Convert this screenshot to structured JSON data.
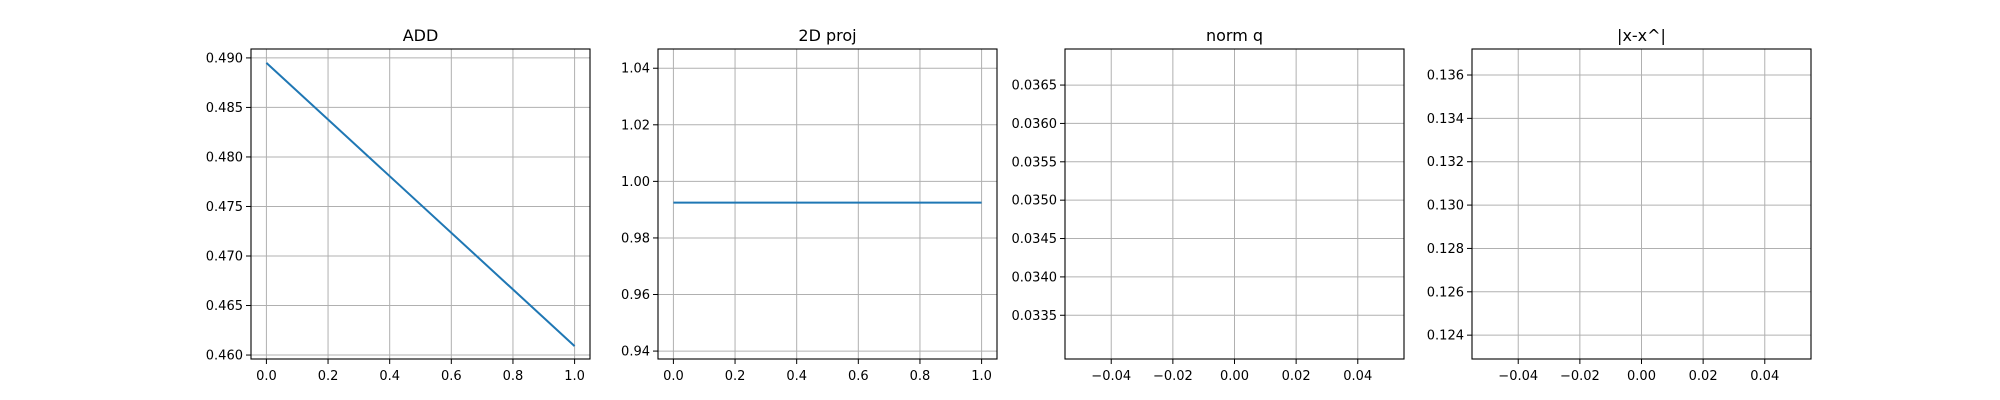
{
  "chart_data": [
    {
      "type": "line",
      "title": "ADD",
      "xlabel": "",
      "ylabel": "",
      "xlim": [
        -0.05,
        1.05
      ],
      "ylim": [
        0.4596,
        0.4909
      ],
      "x_ticks": [
        0.0,
        0.2,
        0.4,
        0.6,
        0.8,
        1.0
      ],
      "x_tick_labels": [
        "0.0",
        "0.2",
        "0.4",
        "0.6",
        "0.8",
        "1.0"
      ],
      "y_ticks": [
        0.46,
        0.465,
        0.47,
        0.475,
        0.48,
        0.485,
        0.49
      ],
      "y_tick_labels": [
        "0.460",
        "0.465",
        "0.470",
        "0.475",
        "0.480",
        "0.485",
        "0.490"
      ],
      "grid": true,
      "series": [
        {
          "x": [
            0.0,
            1.0
          ],
          "y": [
            0.4895,
            0.4609
          ],
          "color": "#1f77b4"
        }
      ]
    },
    {
      "type": "line",
      "title": "2D proj",
      "xlabel": "",
      "ylabel": "",
      "xlim": [
        -0.05,
        1.05
      ],
      "ylim": [
        0.9372,
        1.0468
      ],
      "x_ticks": [
        0.0,
        0.2,
        0.4,
        0.6,
        0.8,
        1.0
      ],
      "x_tick_labels": [
        "0.0",
        "0.2",
        "0.4",
        "0.6",
        "0.8",
        "1.0"
      ],
      "y_ticks": [
        0.94,
        0.96,
        0.98,
        1.0,
        1.02,
        1.04
      ],
      "y_tick_labels": [
        "0.94",
        "0.96",
        "0.98",
        "1.00",
        "1.02",
        "1.04"
      ],
      "grid": true,
      "series": [
        {
          "x": [
            0.0,
            1.0
          ],
          "y": [
            0.9925,
            0.9925
          ],
          "color": "#1f77b4"
        }
      ]
    },
    {
      "type": "line",
      "title": "norm q",
      "xlabel": "",
      "ylabel": "",
      "xlim": [
        -0.055,
        0.055
      ],
      "ylim": [
        0.03293,
        0.03697
      ],
      "x_ticks": [
        -0.04,
        -0.02,
        0.0,
        0.02,
        0.04
      ],
      "x_tick_labels": [
        "−0.04",
        "−0.02",
        "0.00",
        "0.02",
        "0.04"
      ],
      "y_ticks": [
        0.0335,
        0.034,
        0.0345,
        0.035,
        0.0355,
        0.036,
        0.0365
      ],
      "y_tick_labels": [
        "0.0335",
        "0.0340",
        "0.0345",
        "0.0350",
        "0.0355",
        "0.0360",
        "0.0365"
      ],
      "grid": true,
      "series": []
    },
    {
      "type": "line",
      "title": "|x-x^|",
      "xlabel": "",
      "ylabel": "",
      "xlim": [
        -0.055,
        0.055
      ],
      "ylim": [
        0.1229,
        0.1372
      ],
      "x_ticks": [
        -0.04,
        -0.02,
        0.0,
        0.02,
        0.04
      ],
      "x_tick_labels": [
        "−0.04",
        "−0.02",
        "0.00",
        "0.02",
        "0.04"
      ],
      "y_ticks": [
        0.124,
        0.126,
        0.128,
        0.13,
        0.132,
        0.134,
        0.136
      ],
      "y_tick_labels": [
        "0.124",
        "0.126",
        "0.128",
        "0.130",
        "0.132",
        "0.134",
        "0.136"
      ],
      "grid": true,
      "series": []
    }
  ]
}
